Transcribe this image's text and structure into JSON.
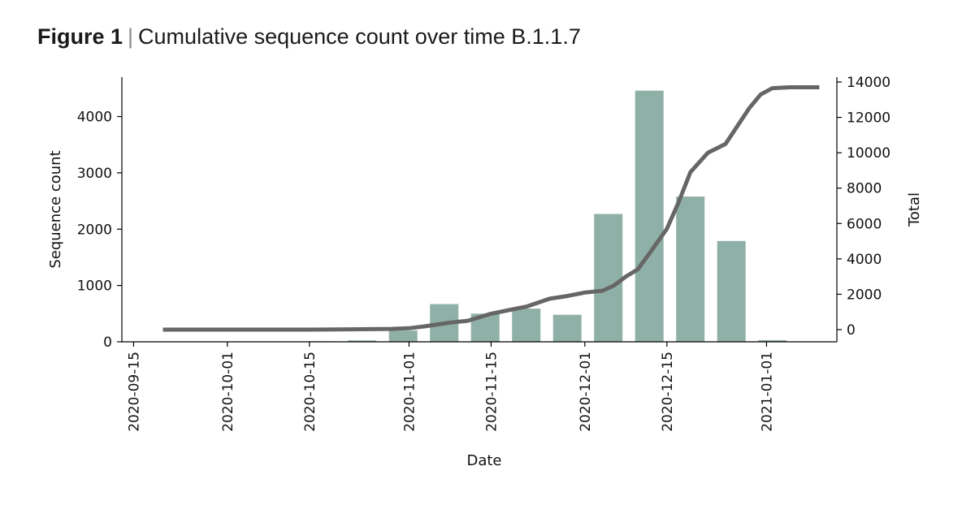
{
  "figure": {
    "label": "Figure 1",
    "separator": "|",
    "title": "Cumulative sequence count over time B.1.1.7"
  },
  "chart_data": {
    "type": "bar+line",
    "title": "Cumulative sequence count over time B.1.1.7",
    "xlabel": "Date",
    "ylabel_left": "Sequence count",
    "ylabel_right": "Total",
    "x_ticks": [
      "2020-09-15",
      "2020-10-01",
      "2020-10-15",
      "2020-11-01",
      "2020-11-15",
      "2020-12-01",
      "2020-12-15",
      "2021-01-01"
    ],
    "y_left_ticks": [
      0,
      1000,
      2000,
      3000,
      4000
    ],
    "y_right_ticks": [
      0,
      2000,
      4000,
      6000,
      8000,
      10000,
      12000,
      14000
    ],
    "y_left_lim": [
      0,
      4700
    ],
    "y_right_lim": [
      -700,
      14450
    ],
    "x_lim": [
      "2020-09-13",
      "2021-01-13"
    ],
    "bar_color": "#8fb0a7",
    "line_color": "#666666",
    "bars": {
      "name": "Sequence count",
      "x": [
        "2020-10-17",
        "2020-10-24",
        "2020-10-31",
        "2020-11-07",
        "2020-11-14",
        "2020-11-21",
        "2020-11-28",
        "2020-12-05",
        "2020-12-12",
        "2020-12-19",
        "2020-12-26",
        "2021-01-02"
      ],
      "values": [
        10,
        25,
        200,
        670,
        500,
        590,
        480,
        2270,
        4460,
        2580,
        1790,
        30
      ]
    },
    "line": {
      "name": "Total",
      "x": [
        "2020-09-20",
        "2020-10-01",
        "2020-10-15",
        "2020-10-22",
        "2020-10-29",
        "2020-11-01",
        "2020-11-04",
        "2020-11-08",
        "2020-11-11",
        "2020-11-15",
        "2020-11-18",
        "2020-11-21",
        "2020-11-25",
        "2020-11-28",
        "2020-12-01",
        "2020-12-04",
        "2020-12-06",
        "2020-12-08",
        "2020-12-10",
        "2020-12-12",
        "2020-12-15",
        "2020-12-17",
        "2020-12-19",
        "2020-12-22",
        "2020-12-25",
        "2020-12-27",
        "2020-12-29",
        "2020-12-31",
        "2021-01-02",
        "2021-01-05",
        "2021-01-10"
      ],
      "values": [
        0,
        0,
        0,
        20,
        40,
        80,
        200,
        400,
        500,
        900,
        1100,
        1300,
        1750,
        1900,
        2100,
        2200,
        2500,
        3000,
        3400,
        4300,
        5700,
        7200,
        8900,
        10000,
        10500,
        11500,
        12500,
        13300,
        13650,
        13700,
        13700
      ]
    }
  }
}
